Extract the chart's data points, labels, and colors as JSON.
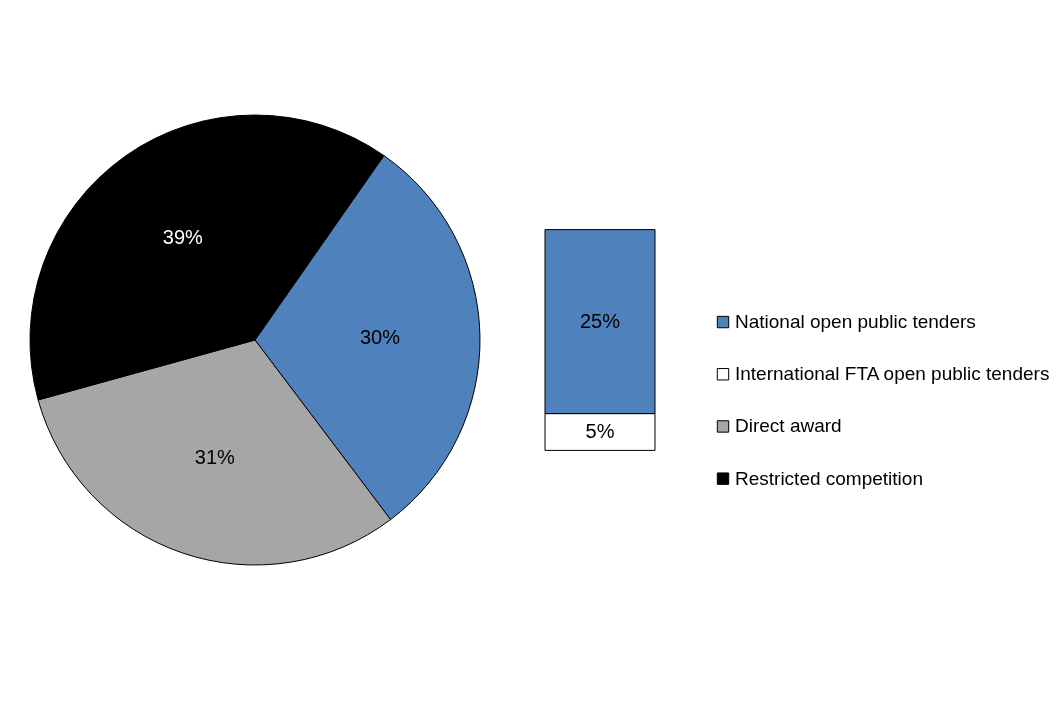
{
  "chart_data": [
    {
      "type": "pie",
      "categories": [
        null,
        "Direct award",
        "Restricted competition"
      ],
      "values": [
        30,
        31,
        39
      ],
      "colors": [
        "#4f81bd",
        "#a6a6a6",
        "#000000"
      ],
      "value_labels": [
        "30%",
        "31%",
        "39%"
      ],
      "legend": "right"
    },
    {
      "type": "bar",
      "stacked": true,
      "categories": [
        null
      ],
      "series": [
        {
          "name": "International FTA open public tenders",
          "color": "#ffffff",
          "values": [
            5
          ],
          "value_labels": [
            "5%"
          ]
        },
        {
          "name": "National open public tenders",
          "color": "#4f81bd",
          "values": [
            25
          ],
          "value_labels": [
            "25%"
          ]
        }
      ],
      "legend": "right"
    }
  ]
}
